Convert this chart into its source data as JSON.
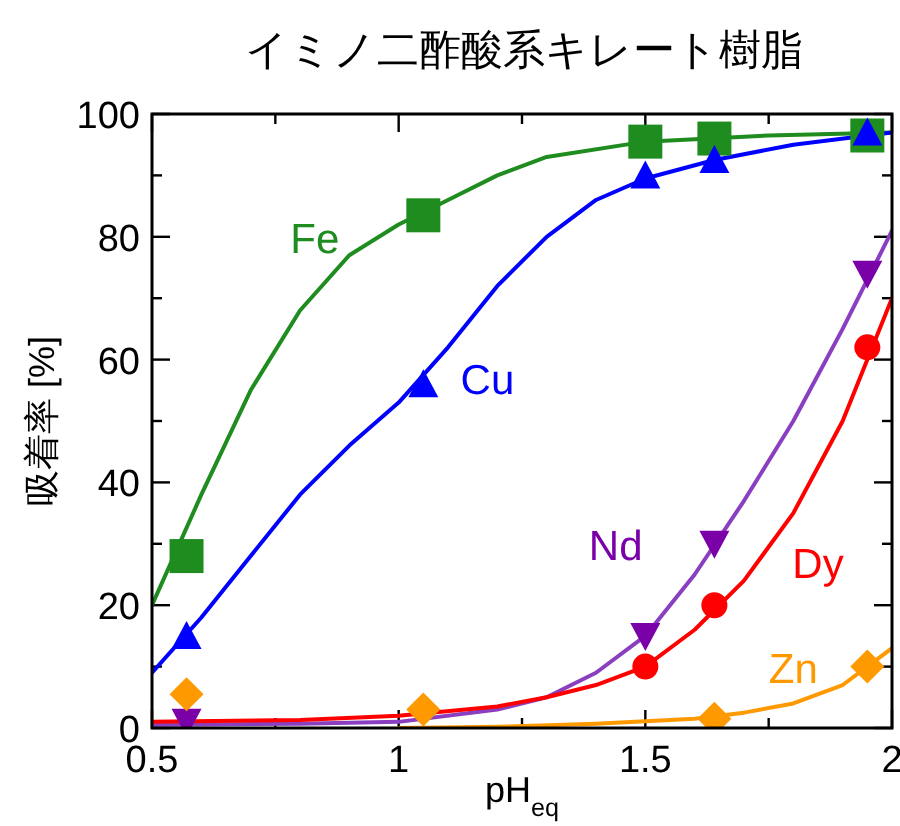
{
  "chart_data": {
    "type": "scatter",
    "title": "イミノ二酢酸系キレート樹脂",
    "xlabel": "pH$_{eq}$",
    "ylabel": "吸着率 [%]",
    "xlim": [
      0.5,
      2
    ],
    "xticks": [
      0.5,
      {
        "value": 0.75,
        "label": null
      },
      1,
      {
        "value": 1.25,
        "label": null
      },
      1.5,
      {
        "value": 1.75,
        "label": null
      },
      2
    ],
    "ylim": [
      0,
      100
    ],
    "yticks": [
      0,
      {
        "value": 10,
        "label": null
      },
      20,
      {
        "value": 30,
        "label": null
      },
      40,
      {
        "value": 50,
        "label": null
      },
      60,
      {
        "value": 70,
        "label": null
      },
      80,
      {
        "value": 90,
        "label": null
      },
      100
    ],
    "grid": false,
    "series": [
      {
        "type": "line",
        "color": "#1e8c1e",
        "marker": "none",
        "x": [
          0.5,
          0.6,
          0.7,
          0.8,
          0.9,
          1.0,
          1.1,
          1.2,
          1.3,
          1.5,
          1.75,
          2.0
        ],
        "values": [
          20,
          38,
          55,
          68,
          77,
          82,
          86,
          90,
          93,
          95.5,
          96.5,
          97
        ]
      },
      {
        "type": "line",
        "color": "#0000ff",
        "marker": "none",
        "x": [
          0.5,
          0.6,
          0.7,
          0.8,
          0.9,
          1.0,
          1.1,
          1.2,
          1.3,
          1.4,
          1.5,
          1.64,
          1.8,
          2.0
        ],
        "values": [
          9,
          18,
          28,
          38,
          46,
          53,
          62,
          72,
          80,
          86,
          89.5,
          92.5,
          95,
          97
        ]
      },
      {
        "type": "line",
        "color": "#8a3fc0",
        "marker": "none",
        "x": [
          0.5,
          0.8,
          1.0,
          1.2,
          1.3,
          1.4,
          1.5,
          1.6,
          1.7,
          1.8,
          1.9,
          2.0
        ],
        "values": [
          0.5,
          0.7,
          1,
          3,
          5,
          9,
          15,
          25,
          37,
          50,
          65,
          81
        ]
      },
      {
        "type": "line",
        "color": "#ff0000",
        "marker": "none",
        "x": [
          0.5,
          0.8,
          1.0,
          1.2,
          1.3,
          1.4,
          1.5,
          1.6,
          1.7,
          1.8,
          1.9,
          2.0
        ],
        "values": [
          1,
          1.3,
          2,
          3.5,
          5,
          7,
          10,
          16,
          24,
          35,
          50,
          70
        ]
      },
      {
        "type": "line",
        "color": "#ff9900",
        "marker": "none",
        "x": [
          1.0,
          1.2,
          1.4,
          1.6,
          1.7,
          1.8,
          1.9,
          2.0
        ],
        "values": [
          0,
          0.2,
          0.7,
          1.5,
          2.5,
          4,
          7,
          13
        ]
      },
      {
        "name": "Fe",
        "color": "#1e8c1e",
        "marker": "square",
        "x": [
          0.57,
          1.05,
          1.5,
          1.64,
          1.95
        ],
        "values": [
          28,
          83.5,
          95.5,
          96,
          96.5
        ]
      },
      {
        "name": "Cu",
        "color": "#0000ff",
        "marker": "triangle",
        "x": [
          0.57,
          1.05,
          1.5,
          1.64,
          1.95
        ],
        "values": [
          15,
          56,
          90,
          92.5,
          97
        ]
      },
      {
        "name": "Nd",
        "color": "#7a00a8",
        "marker": "triangle-down",
        "x": [
          0.57,
          1.5,
          1.64,
          1.95
        ],
        "values": [
          1,
          15,
          30,
          74
        ]
      },
      {
        "name": "Dy",
        "color": "#ff0000",
        "marker": "circle",
        "x": [
          1.5,
          1.64,
          1.95
        ],
        "values": [
          10,
          20,
          62
        ]
      },
      {
        "name": "Zn",
        "color": "#ff9900",
        "marker": "diamond",
        "x": [
          0.57,
          1.05,
          1.64,
          1.95
        ],
        "values": [
          5.5,
          3,
          1.5,
          10
        ]
      }
    ]
  }
}
